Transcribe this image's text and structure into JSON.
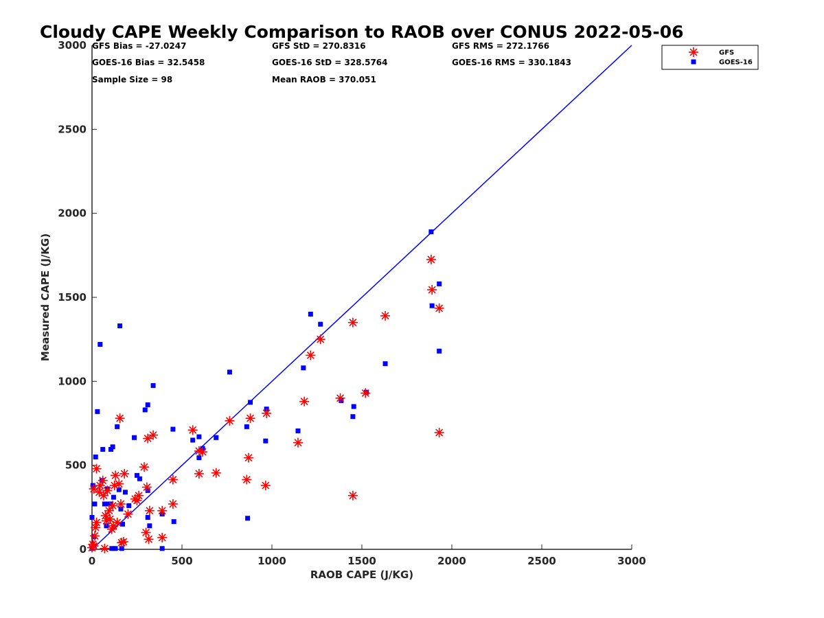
{
  "chart_data": {
    "type": "scatter",
    "title": "Cloudy CAPE Weekly Comparison to RAOB over CONUS 2022-05-06",
    "xlabel": "RAOB CAPE (J/KG)",
    "ylabel": "Measured CAPE (J/KG)",
    "xlim": [
      0,
      3000
    ],
    "ylim": [
      0,
      3000
    ],
    "xticks": [
      "0",
      "500",
      "1000",
      "1500",
      "2000",
      "2500",
      "3000"
    ],
    "yticks": [
      "0",
      "500",
      "1000",
      "1500",
      "2000",
      "2500",
      "3000"
    ],
    "grid": false,
    "legend_position": "top-right, outside plot",
    "stats": [
      [
        "GFS Bias = -27.0247",
        "GFS StD = 270.8316",
        "GFS RMS = 272.1766"
      ],
      [
        "GOES-16 Bias = 32.5458",
        "GOES-16 StD = 328.5764",
        "GOES-16 RMS = 330.1843"
      ],
      [
        "Sample Size = 98",
        "Mean RAOB = 370.051",
        ""
      ]
    ],
    "reference_line": {
      "from": [
        0,
        0
      ],
      "to": [
        3000,
        3000
      ],
      "color": "#0000ff"
    },
    "series": [
      {
        "name": "GFS",
        "marker": "asterisk",
        "color": "#ff0000",
        "points": [
          [
            0,
            10
          ],
          [
            5,
            30
          ],
          [
            10,
            20
          ],
          [
            15,
            80
          ],
          [
            20,
            130
          ],
          [
            25,
            160
          ],
          [
            10,
            360
          ],
          [
            25,
            480
          ],
          [
            40,
            340
          ],
          [
            45,
            380
          ],
          [
            60,
            410
          ],
          [
            65,
            320
          ],
          [
            70,
            5
          ],
          [
            75,
            200
          ],
          [
            80,
            170
          ],
          [
            85,
            350
          ],
          [
            95,
            230
          ],
          [
            100,
            180
          ],
          [
            110,
            120
          ],
          [
            115,
            260
          ],
          [
            120,
            140
          ],
          [
            125,
            380
          ],
          [
            130,
            440
          ],
          [
            140,
            160
          ],
          [
            150,
            390
          ],
          [
            155,
            780
          ],
          [
            160,
            270
          ],
          [
            165,
            40
          ],
          [
            175,
            45
          ],
          [
            180,
            450
          ],
          [
            200,
            210
          ],
          [
            240,
            300
          ],
          [
            250,
            290
          ],
          [
            260,
            320
          ],
          [
            290,
            490
          ],
          [
            300,
            100
          ],
          [
            305,
            370
          ],
          [
            310,
            660
          ],
          [
            315,
            60
          ],
          [
            320,
            230
          ],
          [
            340,
            680
          ],
          [
            390,
            230
          ],
          [
            390,
            70
          ],
          [
            450,
            415
          ],
          [
            450,
            270
          ],
          [
            560,
            710
          ],
          [
            595,
            585
          ],
          [
            595,
            450
          ],
          [
            615,
            580
          ],
          [
            690,
            455
          ],
          [
            765,
            765
          ],
          [
            860,
            415
          ],
          [
            870,
            545
          ],
          [
            880,
            780
          ],
          [
            965,
            380
          ],
          [
            970,
            810
          ],
          [
            1145,
            635
          ],
          [
            1180,
            880
          ],
          [
            1215,
            1155
          ],
          [
            1270,
            1250
          ],
          [
            1380,
            900
          ],
          [
            1450,
            1350
          ],
          [
            1450,
            320
          ],
          [
            1520,
            930
          ],
          [
            1630,
            1390
          ],
          [
            1885,
            1725
          ],
          [
            1890,
            1545
          ],
          [
            1930,
            1435
          ],
          [
            1930,
            695
          ]
        ]
      },
      {
        "name": "GOES-16",
        "marker": "square",
        "color": "#0000ff",
        "points": [
          [
            0,
            5
          ],
          [
            0,
            190
          ],
          [
            5,
            380
          ],
          [
            10,
            20
          ],
          [
            10,
            75
          ],
          [
            15,
            270
          ],
          [
            20,
            550
          ],
          [
            30,
            820
          ],
          [
            45,
            1220
          ],
          [
            55,
            410
          ],
          [
            60,
            595
          ],
          [
            70,
            270
          ],
          [
            80,
            140
          ],
          [
            85,
            360
          ],
          [
            90,
            270
          ],
          [
            100,
            270
          ],
          [
            105,
            595
          ],
          [
            110,
            5
          ],
          [
            115,
            610
          ],
          [
            120,
            310
          ],
          [
            130,
            5
          ],
          [
            140,
            730
          ],
          [
            150,
            355
          ],
          [
            155,
            1330
          ],
          [
            160,
            240
          ],
          [
            165,
            5
          ],
          [
            170,
            150
          ],
          [
            185,
            340
          ],
          [
            205,
            260
          ],
          [
            235,
            665
          ],
          [
            250,
            440
          ],
          [
            265,
            420
          ],
          [
            295,
            830
          ],
          [
            310,
            350
          ],
          [
            310,
            190
          ],
          [
            310,
            860
          ],
          [
            320,
            140
          ],
          [
            340,
            975
          ],
          [
            390,
            210
          ],
          [
            390,
            5
          ],
          [
            450,
            715
          ],
          [
            455,
            165
          ],
          [
            560,
            650
          ],
          [
            595,
            545
          ],
          [
            595,
            670
          ],
          [
            615,
            600
          ],
          [
            690,
            665
          ],
          [
            765,
            1055
          ],
          [
            860,
            730
          ],
          [
            865,
            185
          ],
          [
            880,
            875
          ],
          [
            965,
            645
          ],
          [
            970,
            835
          ],
          [
            1145,
            705
          ],
          [
            1175,
            1080
          ],
          [
            1215,
            1400
          ],
          [
            1270,
            1340
          ],
          [
            1385,
            885
          ],
          [
            1450,
            790
          ],
          [
            1455,
            850
          ],
          [
            1525,
            935
          ],
          [
            1630,
            1105
          ],
          [
            1885,
            1890
          ],
          [
            1890,
            1450
          ],
          [
            1930,
            1580
          ],
          [
            1930,
            1180
          ]
        ]
      }
    ]
  }
}
